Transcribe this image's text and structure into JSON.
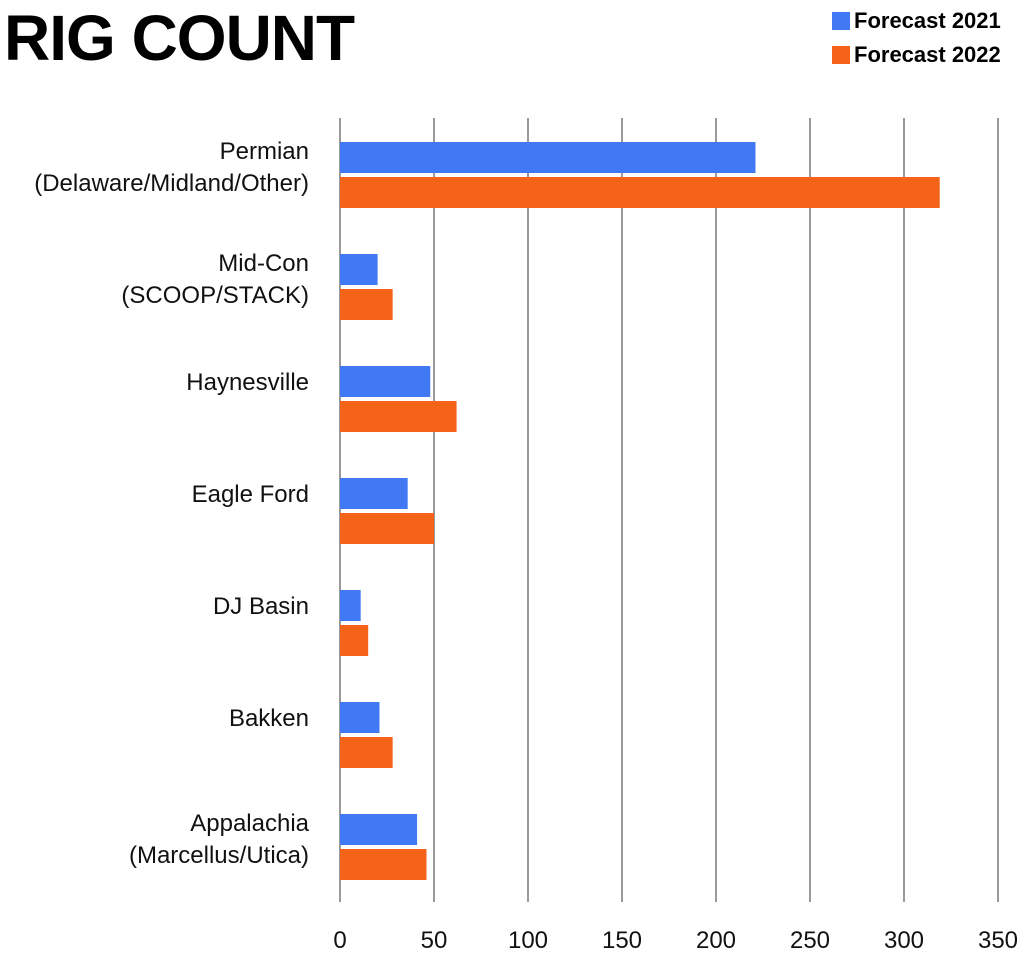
{
  "chart_data": {
    "type": "bar",
    "orientation": "horizontal",
    "title": "RIG COUNT",
    "categories": [
      [
        "Permian",
        "(Delaware/Midland/Other)"
      ],
      [
        "Mid-Con",
        "(SCOOP/STACK)"
      ],
      [
        "Haynesville"
      ],
      [
        "Eagle Ford"
      ],
      [
        "DJ Basin"
      ],
      [
        "Bakken"
      ],
      [
        "Appalachia",
        "(Marcellus/Utica)"
      ]
    ],
    "series": [
      {
        "name": "Forecast 2021",
        "color": "#4179f5",
        "values": [
          221,
          20,
          48,
          36,
          11,
          21,
          41
        ]
      },
      {
        "name": "Forecast 2022",
        "color": "#f5621a",
        "values": [
          319,
          28,
          62,
          50,
          15,
          28,
          46
        ]
      }
    ],
    "xlim": [
      0,
      350
    ],
    "x_ticks": [
      0,
      50,
      100,
      150,
      200,
      250,
      300,
      350
    ],
    "grid": "vertical",
    "legend_position": "top-right"
  }
}
